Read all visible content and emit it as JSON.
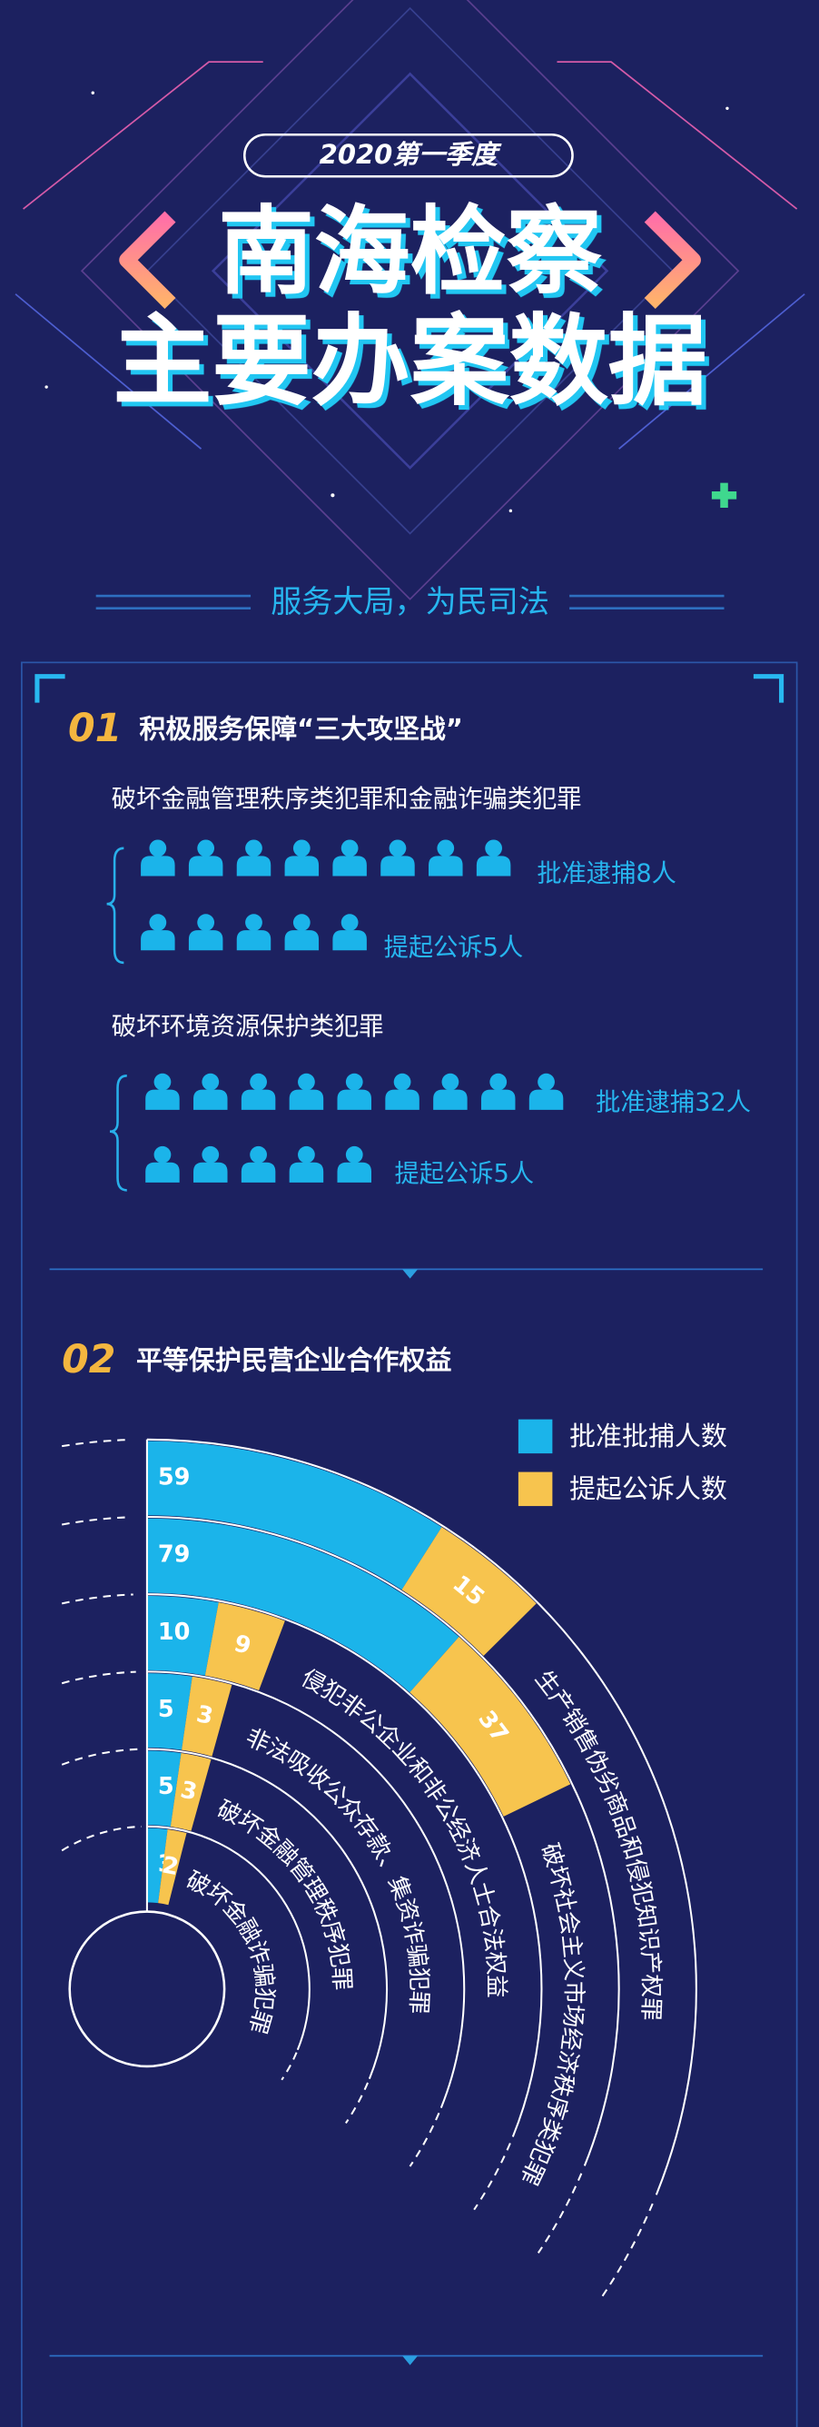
{
  "header": {
    "badge": "2020第一季度",
    "title_line1": "南海检察",
    "title_line2": "主要办案数据",
    "slogan": "服务大局，为民司法"
  },
  "section1": {
    "number": "01",
    "title": "积极服务保障“三大攻坚战”",
    "groups": [
      {
        "title": "破坏金融管理秩序类犯罪和金融诈骗类犯罪",
        "rows": [
          "批准逮捕8人",
          "提起公诉5人"
        ]
      },
      {
        "title": "破坏环境资源保护类犯罪",
        "rows": [
          "批准逮捕32人",
          "提起公诉5人"
        ]
      }
    ]
  },
  "chart_data": {
    "type": "radial-bar",
    "number": "02",
    "title": "平等保护民营企业合作权益",
    "categories": [
      "生产销售伪劣商品和侵犯知识产权罪",
      "破坏社会主义市场经济秩序类犯罪",
      "侵犯非公企业和非公经济人士合法权益",
      "非法吸收公众存款、集资诈骗犯罪",
      "破坏金融管理秩序犯罪",
      "破坏金融诈骗犯罪"
    ],
    "series": [
      {
        "name": "批准批捕人数",
        "color": "#1bb4ea",
        "values": [
          59,
          79,
          10,
          5,
          5,
          3
        ]
      },
      {
        "name": "提起公诉人数",
        "color": "#f7c44e",
        "values": [
          15,
          37,
          9,
          3,
          3,
          2
        ]
      }
    ]
  }
}
